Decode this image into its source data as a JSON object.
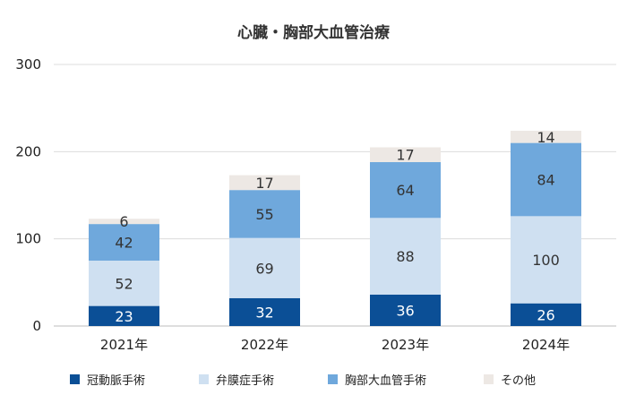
{
  "chart_data": {
    "type": "bar",
    "stacked": true,
    "title": "心臓・胸部大血管治療",
    "xlabel": "",
    "ylabel": "",
    "ylim": [
      0,
      300
    ],
    "yticks": [
      0,
      100,
      200,
      300
    ],
    "grid": true,
    "legend_position": "bottom",
    "categories": [
      "2021年",
      "2022年",
      "2023年",
      "2024年"
    ],
    "series": [
      {
        "name": "冠動脈手術",
        "color": "#0b4f96",
        "label_color": "#ffffff",
        "values": [
          23,
          32,
          36,
          26
        ]
      },
      {
        "name": "弁膜症手術",
        "color": "#cfe0f1",
        "label_color": "#333333",
        "values": [
          52,
          69,
          88,
          100
        ]
      },
      {
        "name": "胸部大血管手術",
        "color": "#6fa8dc",
        "label_color": "#333333",
        "values": [
          42,
          55,
          64,
          84
        ]
      },
      {
        "name": "その他",
        "color": "#ede8e4",
        "label_color": "#333333",
        "values": [
          6,
          17,
          17,
          14
        ]
      }
    ]
  }
}
